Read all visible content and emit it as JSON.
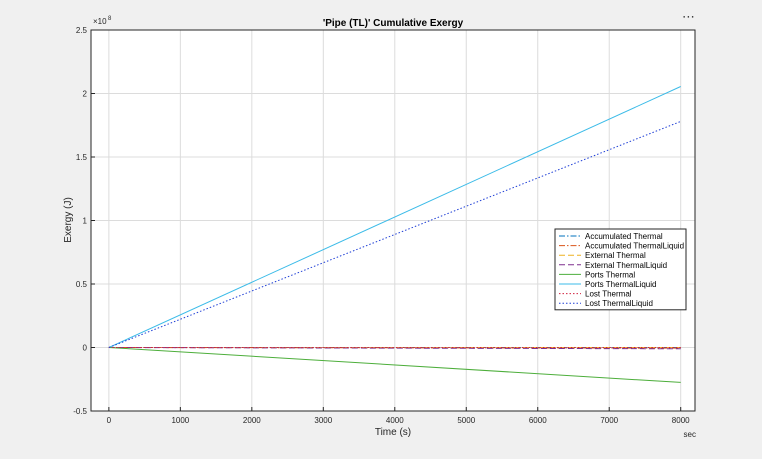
{
  "figure": {
    "more_options_label": "⋯"
  },
  "chart_data": {
    "type": "line",
    "title": "'Pipe (TL)' Cumulative Exergy",
    "xlabel": "Time (s)",
    "ylabel": "Exergy (J)",
    "x_unit_label": "sec",
    "y_exponent_base": "×10",
    "y_exponent_power": "8",
    "xlim": [
      -250,
      8200
    ],
    "ylim": [
      -0.5,
      2.5
    ],
    "x_ticks": [
      0,
      1000,
      2000,
      3000,
      4000,
      5000,
      6000,
      7000,
      8000
    ],
    "x_tick_labels": [
      "0",
      "1000",
      "2000",
      "3000",
      "4000",
      "5000",
      "6000",
      "7000",
      "8000"
    ],
    "y_ticks": [
      -0.5,
      0,
      0.5,
      1,
      1.5,
      2,
      2.5
    ],
    "y_tick_labels": [
      "-0.5",
      "0",
      "0.5",
      "1",
      "1.5",
      "2",
      "2.5"
    ],
    "grid": true,
    "legend_position": "right",
    "series": [
      {
        "name": "Accumulated Thermal",
        "color": "#0072bd",
        "dash": "dashdot",
        "x": [
          0,
          8000
        ],
        "y": [
          0,
          0
        ]
      },
      {
        "name": "Accumulated ThermalLiquid",
        "color": "#d95319",
        "dash": "dashdot",
        "x": [
          0,
          8000
        ],
        "y": [
          0,
          -0.005
        ]
      },
      {
        "name": "External Thermal",
        "color": "#edb120",
        "dash": "dashed",
        "x": [
          0,
          8000
        ],
        "y": [
          0,
          0
        ]
      },
      {
        "name": "External ThermalLiquid",
        "color": "#7e2f8e",
        "dash": "dashed",
        "x": [
          0,
          8000
        ],
        "y": [
          0,
          -0.01
        ]
      },
      {
        "name": "Ports Thermal",
        "color": "#4dae3b",
        "dash": "solid",
        "x": [
          0,
          8000
        ],
        "y": [
          0,
          -0.275
        ]
      },
      {
        "name": "Ports ThermalLiquid",
        "color": "#3bbbe8",
        "dash": "solid",
        "x": [
          0,
          8000
        ],
        "y": [
          0,
          2.055
        ]
      },
      {
        "name": "Lost Thermal",
        "color": "#d0203e",
        "dash": "dotted",
        "x": [
          0,
          8000
        ],
        "y": [
          0,
          0
        ]
      },
      {
        "name": "Lost ThermalLiquid",
        "color": "#1f3fd6",
        "dash": "dotted",
        "x": [
          0,
          8000
        ],
        "y": [
          0,
          1.78
        ]
      }
    ]
  }
}
